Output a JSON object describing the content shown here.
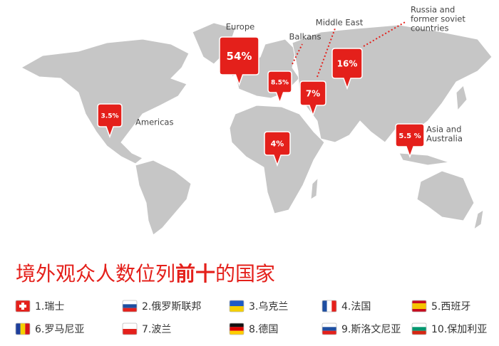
{
  "map": {
    "markers": [
      {
        "region": "Americas",
        "label": "3.5%"
      },
      {
        "region": "Europe",
        "label": "54%"
      },
      {
        "region": "Balkans",
        "label": "8.5%"
      },
      {
        "region": "Middle East",
        "label": "7%"
      },
      {
        "region": [
          "Russia and",
          "former soviet",
          "countries"
        ],
        "label": "16%"
      },
      {
        "region": null,
        "label": "4%"
      },
      {
        "region": [
          "Asia and",
          "Australia"
        ],
        "label": "5.5 %"
      }
    ]
  },
  "title": {
    "parts": [
      "境外观众人数位列",
      "前十",
      "的国家"
    ]
  },
  "countries": [
    "1.瑞士",
    "2.俄罗斯联邦",
    "3.乌克兰",
    "4.法国",
    "5.西班牙",
    "6.罗马尼亚",
    "7.波兰",
    "8.德国",
    "9.斯洛文尼亚",
    "10.保加利亚"
  ]
}
